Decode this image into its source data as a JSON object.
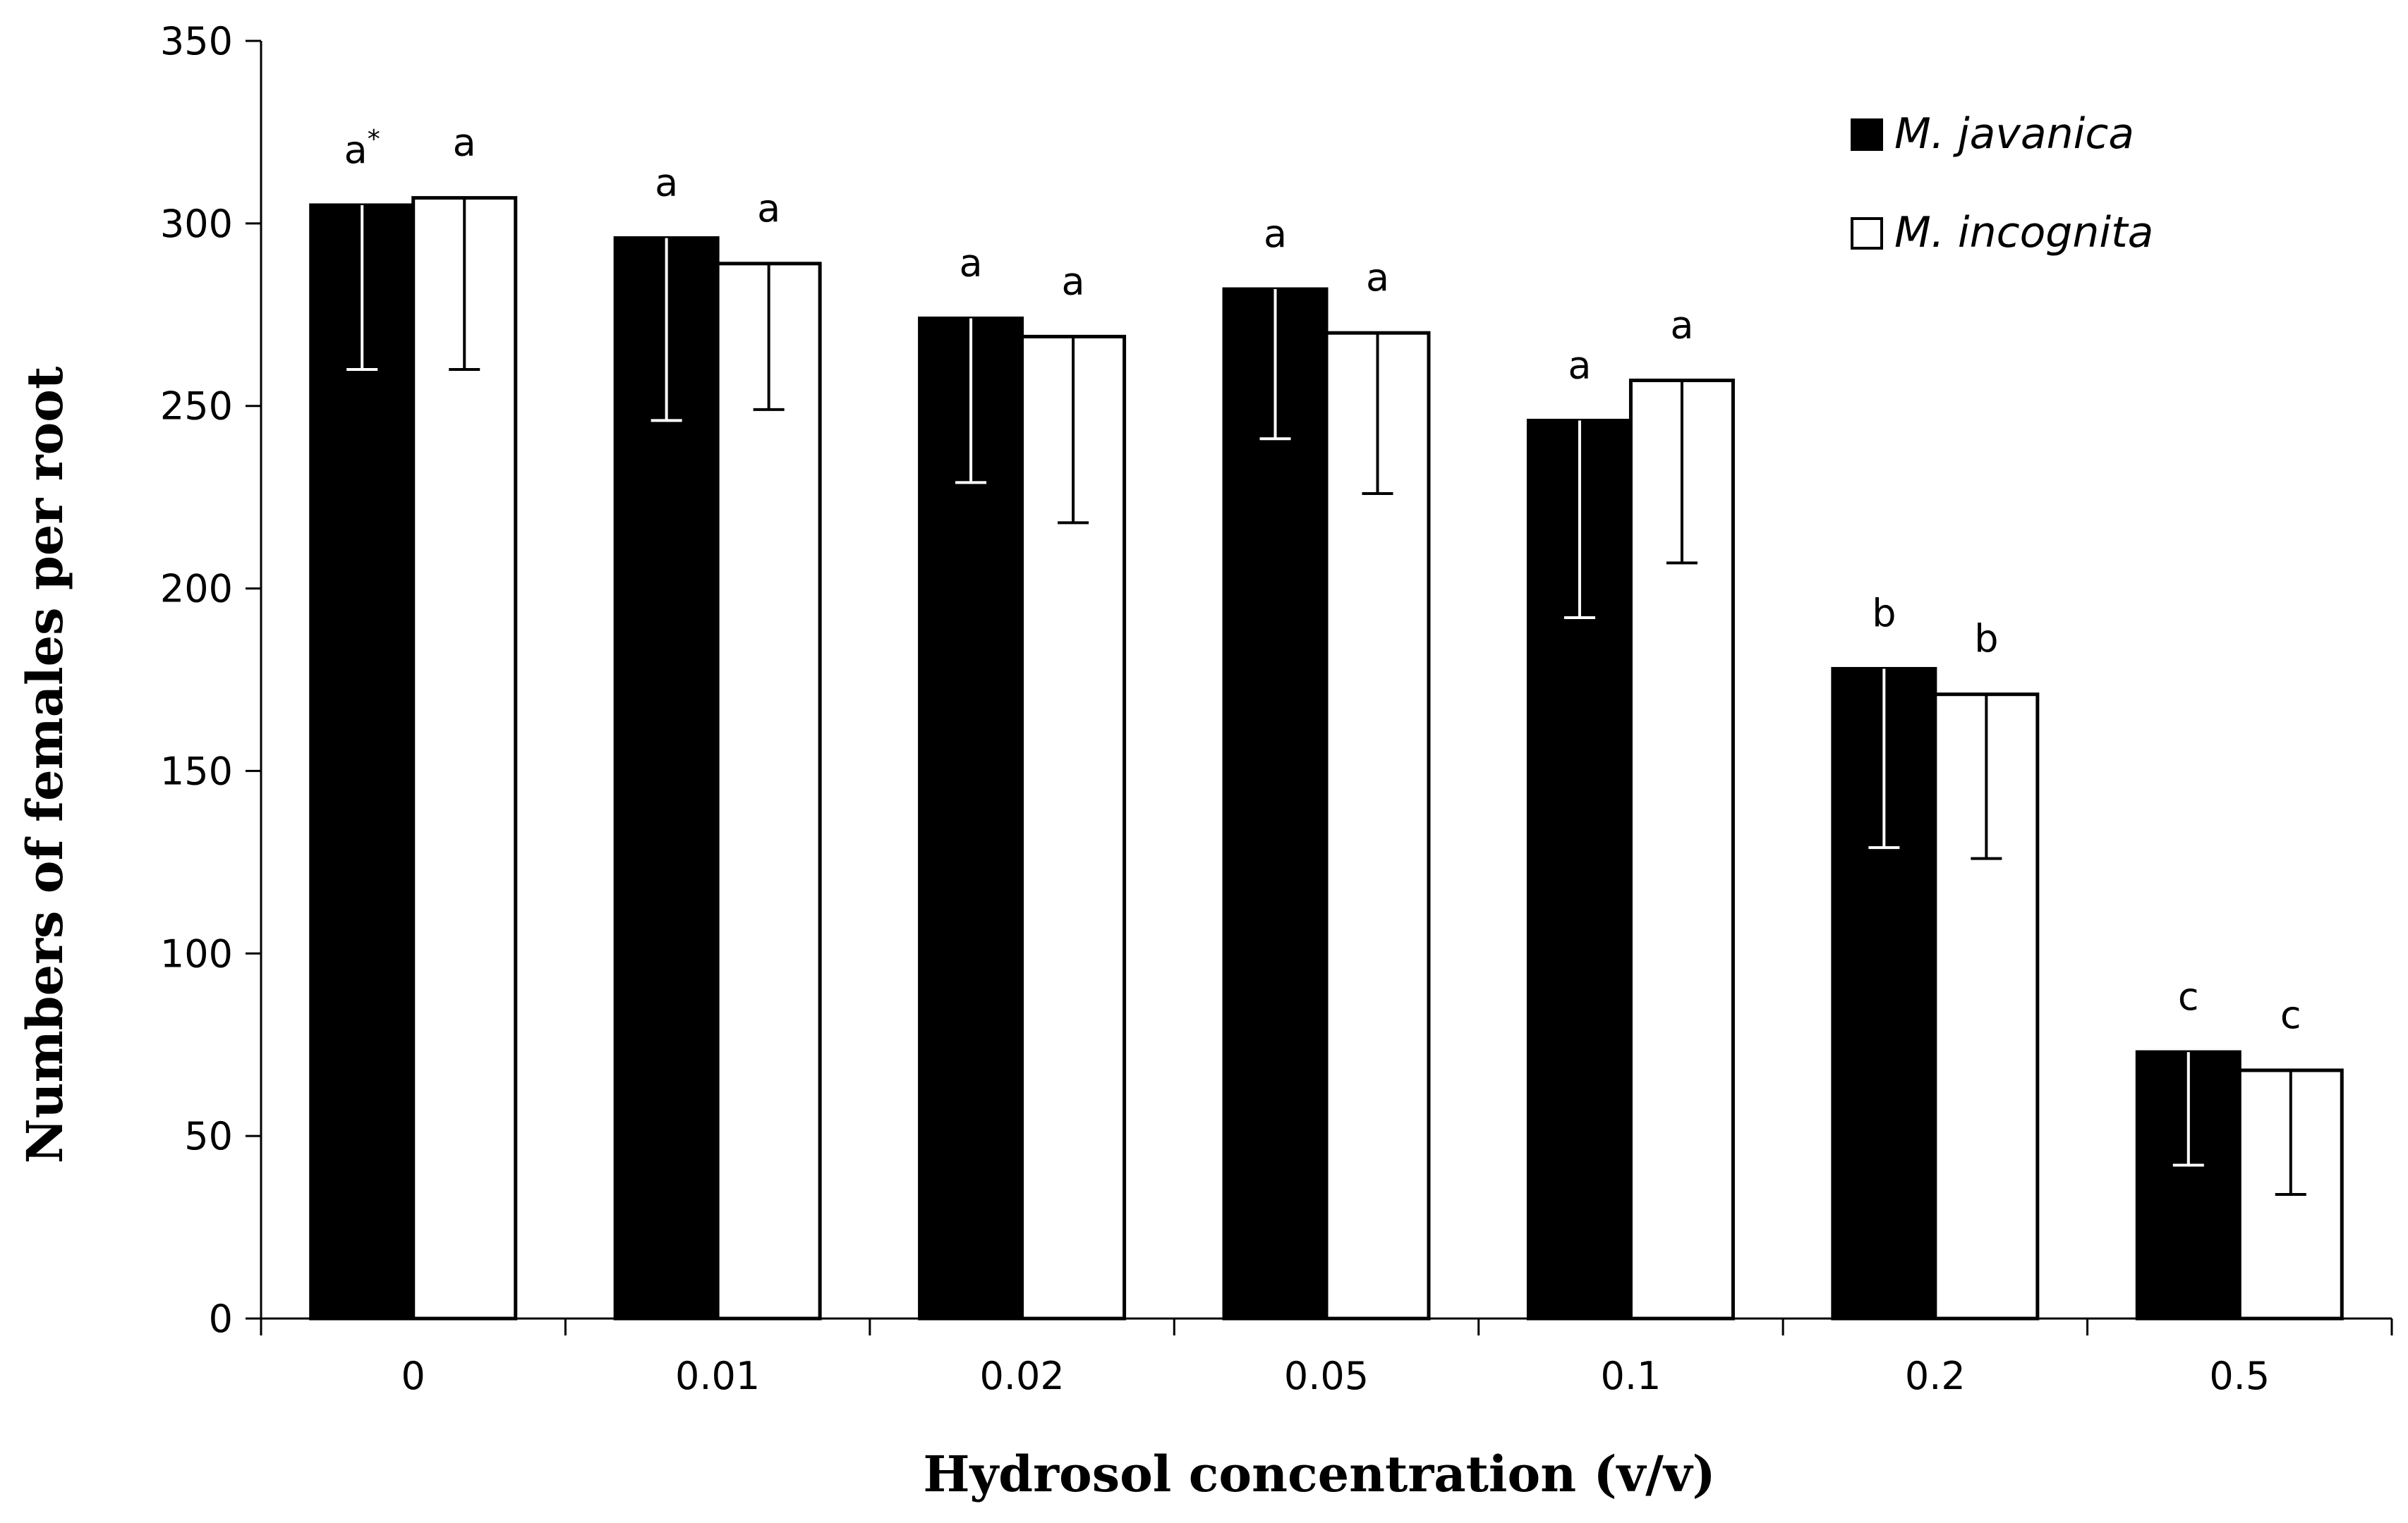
{
  "chart_data": {
    "type": "bar",
    "title": "",
    "xlabel": "Hydrosol concentration (v/v)",
    "ylabel": "Numbers of females per root",
    "ylim": [
      0,
      350
    ],
    "yticks": [
      "0",
      "50",
      "100",
      "150",
      "200",
      "250",
      "300",
      "350"
    ],
    "categories": [
      "0",
      "0.01",
      "0.02",
      "0.05",
      "0.1",
      "0.2",
      "0.5"
    ],
    "legend_position": "top-right",
    "series": [
      {
        "name": "M. javanica",
        "color": "#000000",
        "values": [
          305,
          296,
          274,
          282,
          246,
          178,
          73
        ],
        "errors": [
          45,
          50,
          45,
          41,
          54,
          49,
          31
        ],
        "labels": [
          "a",
          "a",
          "a",
          "a",
          "a",
          "b",
          "c"
        ],
        "label_superscripts": [
          "*",
          "",
          "",
          "",
          "",
          "",
          ""
        ]
      },
      {
        "name": "M. incognita",
        "color": "#ffffff",
        "values": [
          307,
          289,
          269,
          270,
          257,
          171,
          68
        ],
        "errors": [
          47,
          40,
          51,
          44,
          50,
          45,
          34
        ],
        "labels": [
          "a",
          "a",
          "a",
          "a",
          "a",
          "b",
          "c"
        ],
        "label_superscripts": [
          "",
          "",
          "",
          "",
          "",
          "",
          ""
        ]
      }
    ]
  }
}
